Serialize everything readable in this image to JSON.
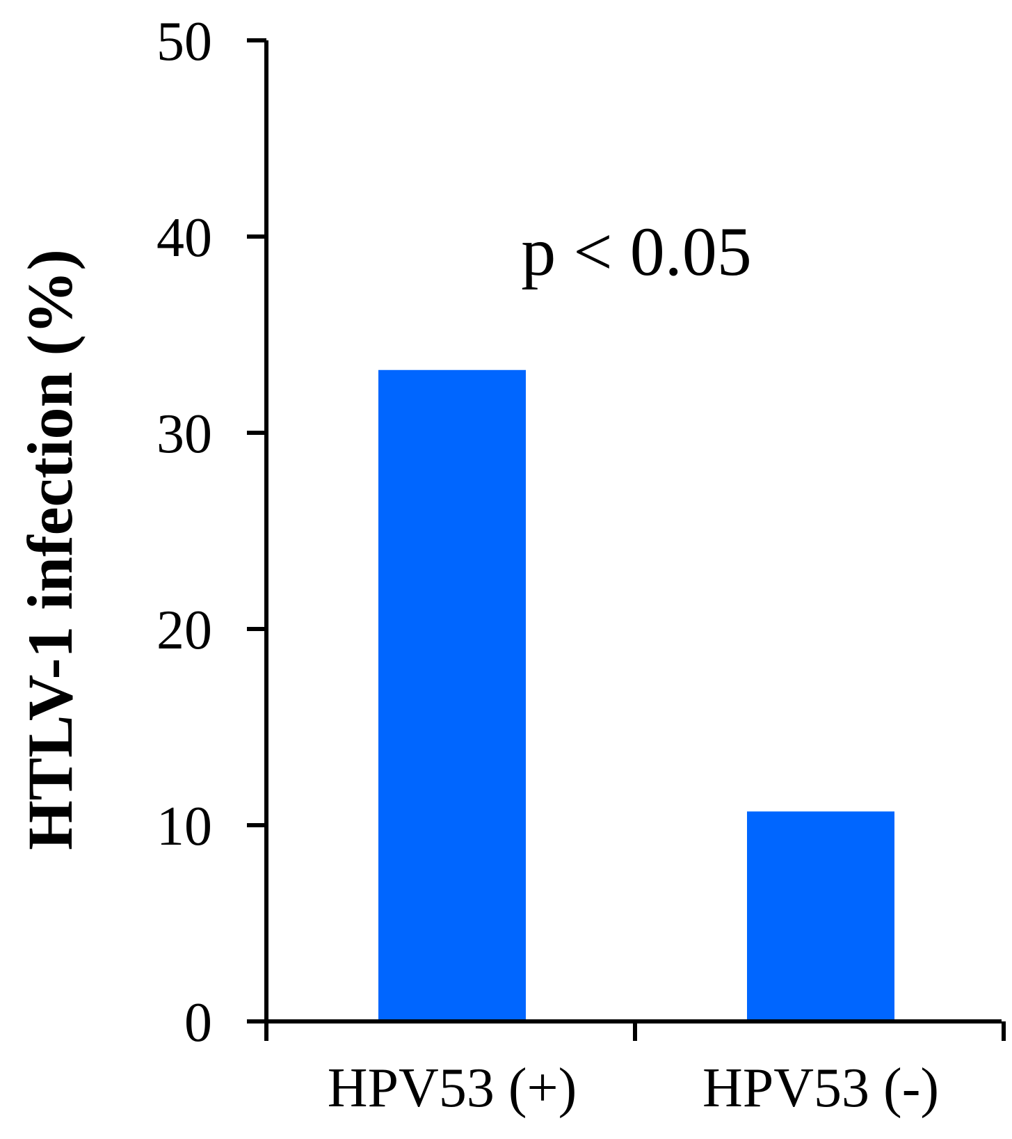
{
  "chart_data": {
    "type": "bar",
    "categories": [
      "HPV53 (+)",
      "HPV53 (-)"
    ],
    "values": [
      33.2,
      10.7
    ],
    "ylabel": "HTLV-1 infection (%)",
    "xlabel": "",
    "ylim": [
      0,
      50
    ],
    "yticks": [
      0,
      10,
      20,
      30,
      40,
      50
    ],
    "annotation": "p < 0.05",
    "bar_color": "#0066ff",
    "grid": false,
    "legend": "none"
  }
}
